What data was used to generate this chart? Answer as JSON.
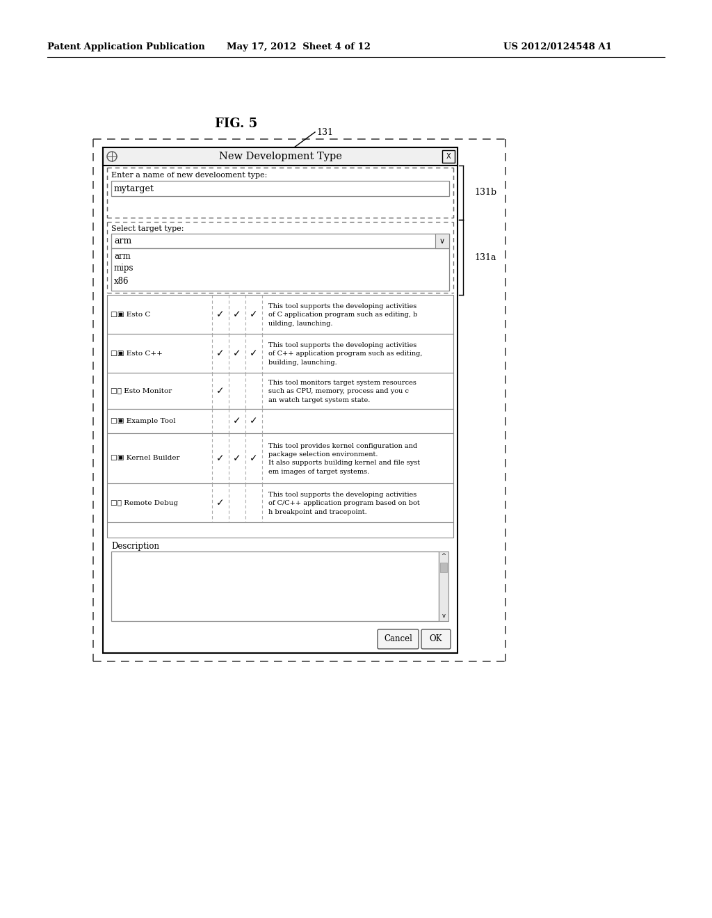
{
  "header_left": "Patent Application Publication",
  "header_mid": "May 17, 2012  Sheet 4 of 12",
  "header_right": "US 2012/0124548 A1",
  "fig_label": "FIG. 5",
  "dialog_title": "New Development Type",
  "label_131": "131",
  "label_131a": "131a",
  "label_131b": "131b",
  "name_label": "Enter a name of new develooment type:",
  "name_value": "mytarget",
  "target_label": "Select target type:",
  "target_dropdown": "arm",
  "dropdown_items": [
    "arm",
    "mips",
    "x86"
  ],
  "tools": [
    {
      "name": "□▣ Esto C",
      "checks": [
        true,
        true,
        true
      ],
      "description": "This tool supports the developing activities\nof C application program such as editing, b\nuilding, launching."
    },
    {
      "name": "□▣ Esto C++",
      "checks": [
        true,
        true,
        true
      ],
      "description": "This tool supports the developing activities\nof C++ application program such as editing,\nbuilding, launching."
    },
    {
      "name": "□Ⓢ Esto Monitor",
      "checks": [
        true,
        false,
        false
      ],
      "description": "This tool monitors target system resources\nsuch as CPU, memory, process and you c\nan watch target system state."
    },
    {
      "name": "□▣ Example Tool",
      "checks": [
        false,
        true,
        true
      ],
      "description": ""
    },
    {
      "name": "□▣ Kernel Builder",
      "checks": [
        true,
        true,
        true
      ],
      "description": "This tool provides kernel configuration and\npackage selection environment.\nIt also supports building kernel and file syst\nem images of target systems."
    },
    {
      "name": "□⚙ Remote Debug",
      "checks": [
        true,
        false,
        false
      ],
      "description": "This tool supports the developing activities\nof C/C++ application program based on bot\nh breakpoint and tracepoint."
    }
  ],
  "description_label": "Description",
  "cancel_btn": "Cancel",
  "ok_btn": "OK",
  "bg_color": "#ffffff"
}
